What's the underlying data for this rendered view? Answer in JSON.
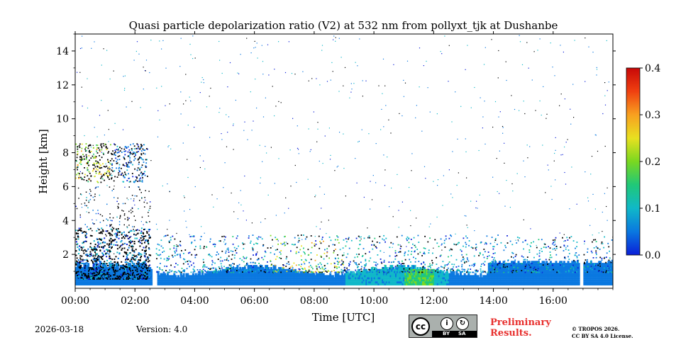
{
  "chart_data": {
    "type": "heatmap",
    "title": "Quasi particle depolarization ratio (V2) at 532 nm from pollyxt_tjk at Dushanbe",
    "xlabel": "Time [UTC]",
    "ylabel": "Height [km]",
    "xlim_hours": [
      0,
      18
    ],
    "ylim_km": [
      0,
      15
    ],
    "x_ticks": [
      {
        "value": 0,
        "label": "00:00"
      },
      {
        "value": 2,
        "label": "02:00"
      },
      {
        "value": 4,
        "label": "04:00"
      },
      {
        "value": 6,
        "label": "06:00"
      },
      {
        "value": 8,
        "label": "08:00"
      },
      {
        "value": 10,
        "label": "10:00"
      },
      {
        "value": 12,
        "label": "12:00"
      },
      {
        "value": 14,
        "label": "14:00"
      },
      {
        "value": 16,
        "label": "16:00"
      }
    ],
    "y_ticks": [
      {
        "value": 2,
        "label": "2"
      },
      {
        "value": 4,
        "label": "4"
      },
      {
        "value": 6,
        "label": "6"
      },
      {
        "value": 8,
        "label": "8"
      },
      {
        "value": 10,
        "label": "10"
      },
      {
        "value": 12,
        "label": "12"
      },
      {
        "value": 14,
        "label": "14"
      }
    ],
    "colorbar": {
      "min": 0.0,
      "max": 0.4,
      "ticks": [
        {
          "value": 0.0,
          "label": "0.0"
        },
        {
          "value": 0.1,
          "label": "0.1"
        },
        {
          "value": 0.2,
          "label": "0.2"
        },
        {
          "value": 0.3,
          "label": "0.3"
        },
        {
          "value": 0.4,
          "label": "0.4"
        }
      ],
      "colormap": [
        "#0a1fd8",
        "#0a78e0",
        "#10b8c8",
        "#20c878",
        "#7ad820",
        "#e8e020",
        "#f8a020",
        "#f04010",
        "#c80808"
      ]
    },
    "data_gaps_hours": [
      [
        2.55,
        2.7
      ],
      [
        16.85,
        17.0
      ]
    ],
    "regions": [
      {
        "name": "boundary layer",
        "t_start": 0.0,
        "t_end": 18.0,
        "top_km": 1.2,
        "value": 0.06
      },
      {
        "name": "afternoon layer",
        "t_start": 13.8,
        "t_end": 18.0,
        "top_km": 1.4,
        "value": 0.05
      },
      {
        "name": "midday dust",
        "t_start": 11.0,
        "t_end": 12.0,
        "top_km": 1.0,
        "value": 0.14
      },
      {
        "name": "night aerosol",
        "t_start": 0.0,
        "t_end": 2.5,
        "top_km": 3.0,
        "value": 0.04
      },
      {
        "name": "upper cloud",
        "t_start": 0.0,
        "t_end": 2.4,
        "bottom_km": 6.2,
        "top_km": 8.5,
        "value": 0.2
      }
    ]
  },
  "footer": {
    "date": "2026-03-18",
    "version": "Version: 4.0",
    "license_badge": {
      "cc": "cc",
      "by": "BY",
      "sa": "SA"
    },
    "preliminary_line1": "Preliminary",
    "preliminary_line2": "Results.",
    "copyright_line1": "© TROPOS 2026.",
    "copyright_line2": "CC BY SA 4.0 License."
  }
}
